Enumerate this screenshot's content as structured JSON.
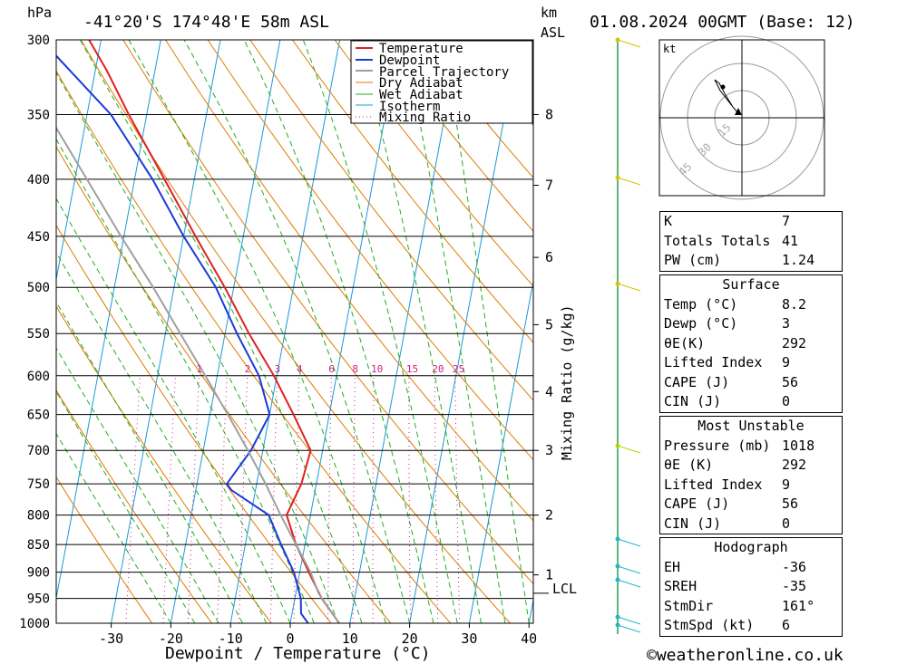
{
  "header": {
    "hpa_label": "hPa",
    "location": "-41°20'S  174°48'E  58m  ASL",
    "km_label": "km",
    "asl_label": "ASL",
    "datetime": "01.08.2024  00GMT  (Base: 12)"
  },
  "axes": {
    "xlabel": "Dewpoint / Temperature (°C)",
    "mixing_label": "Mixing Ratio (g/kg)",
    "lcl_label": "LCL",
    "hodo_unit": "kt"
  },
  "chart_data": {
    "type": "line",
    "title": "-41°20'S  174°48'E  58m  ASL",
    "xlabel": "Dewpoint / Temperature (°C)",
    "ylabel": "hPa",
    "pressure_ticks": [
      300,
      350,
      400,
      450,
      500,
      550,
      600,
      650,
      700,
      750,
      800,
      850,
      900,
      950,
      1000
    ],
    "temp_ticks": [
      -30,
      -20,
      -10,
      0,
      10,
      20,
      30,
      40
    ],
    "xlim": [
      -40,
      40
    ],
    "ylim": [
      1000,
      300
    ],
    "km_ticks": [
      {
        "p": 350,
        "label": "8"
      },
      {
        "p": 405,
        "label": "7"
      },
      {
        "p": 470,
        "label": "6"
      },
      {
        "p": 540,
        "label": "5"
      },
      {
        "p": 620,
        "label": "4"
      },
      {
        "p": 700,
        "label": "3"
      },
      {
        "p": 800,
        "label": "2"
      },
      {
        "p": 905,
        "label": "1"
      }
    ],
    "lcl_pressure": 940,
    "mixing_ratio_labels": [
      "1",
      "2",
      "3",
      "4",
      "6",
      "8",
      "10",
      "15",
      "20",
      "25"
    ],
    "legend": [
      "Temperature",
      "Dewpoint",
      "Parcel Trajectory",
      "Dry Adiabat",
      "Wet Adiabat",
      "Isotherm",
      "Mixing Ratio"
    ],
    "series": [
      {
        "name": "Temperature",
        "color": "#e02020",
        "points": [
          [
            1000,
            8.2
          ],
          [
            950,
            4.5
          ],
          [
            900,
            1.5
          ],
          [
            850,
            -1.5
          ],
          [
            800,
            -4
          ],
          [
            750,
            -2.5
          ],
          [
            700,
            -2
          ],
          [
            650,
            -6
          ],
          [
            600,
            -10.5
          ],
          [
            550,
            -16
          ],
          [
            500,
            -21.5
          ],
          [
            450,
            -28
          ],
          [
            400,
            -35
          ],
          [
            350,
            -43
          ],
          [
            320,
            -48
          ],
          [
            300,
            -52
          ]
        ]
      },
      {
        "name": "Dewpoint",
        "color": "#1a3ad8",
        "points": [
          [
            1000,
            3
          ],
          [
            980,
            1.5
          ],
          [
            950,
            1
          ],
          [
            900,
            -1
          ],
          [
            850,
            -4
          ],
          [
            800,
            -7
          ],
          [
            760,
            -14
          ],
          [
            750,
            -15
          ],
          [
            700,
            -12
          ],
          [
            650,
            -10
          ],
          [
            600,
            -13
          ],
          [
            550,
            -18
          ],
          [
            500,
            -23
          ],
          [
            450,
            -30
          ],
          [
            400,
            -37
          ],
          [
            350,
            -46
          ],
          [
            300,
            -60
          ]
        ]
      },
      {
        "name": "Parcel Trajectory",
        "color": "#a0a0a0",
        "points": [
          [
            1000,
            8.2
          ],
          [
            940,
            3.8
          ],
          [
            900,
            1.8
          ],
          [
            850,
            -1.5
          ],
          [
            800,
            -5
          ],
          [
            750,
            -8.5
          ],
          [
            700,
            -12.5
          ],
          [
            650,
            -17
          ],
          [
            600,
            -22
          ],
          [
            550,
            -27.5
          ],
          [
            500,
            -33.5
          ],
          [
            450,
            -40.5
          ],
          [
            400,
            -48
          ],
          [
            350,
            -56.5
          ],
          [
            300,
            -66
          ]
        ]
      }
    ]
  },
  "hodograph": {
    "unit": "kt",
    "ring_labels": [
      "15",
      "30",
      "45"
    ]
  },
  "indices": {
    "rows": [
      {
        "label": "K",
        "value": "7"
      },
      {
        "label": "Totals Totals",
        "value": "41"
      },
      {
        "label": "PW (cm)",
        "value": "1.24"
      }
    ]
  },
  "surface": {
    "title": "Surface",
    "rows": [
      {
        "label": "Temp (°C)",
        "value": "8.2"
      },
      {
        "label": "Dewp (°C)",
        "value": "3"
      },
      {
        "label": "θE(K)",
        "value": "292"
      },
      {
        "label": "Lifted Index",
        "value": "9"
      },
      {
        "label": "CAPE (J)",
        "value": "56"
      },
      {
        "label": "CIN (J)",
        "value": "0"
      }
    ]
  },
  "most_unstable": {
    "title": "Most Unstable",
    "rows": [
      {
        "label": "Pressure (mb)",
        "value": "1018"
      },
      {
        "label": "θE (K)",
        "value": "292"
      },
      {
        "label": "Lifted Index",
        "value": "9"
      },
      {
        "label": "CAPE (J)",
        "value": "56"
      },
      {
        "label": "CIN (J)",
        "value": "0"
      }
    ]
  },
  "hodograph_stats": {
    "title": "Hodograph",
    "rows": [
      {
        "label": "EH",
        "value": "-36"
      },
      {
        "label": "SREH",
        "value": "-35"
      },
      {
        "label": "StmDir",
        "value": "161°"
      },
      {
        "label": "StmSpd (kt)",
        "value": "6"
      }
    ]
  },
  "footer": {
    "copyright": "©weatheronline.co.uk"
  }
}
